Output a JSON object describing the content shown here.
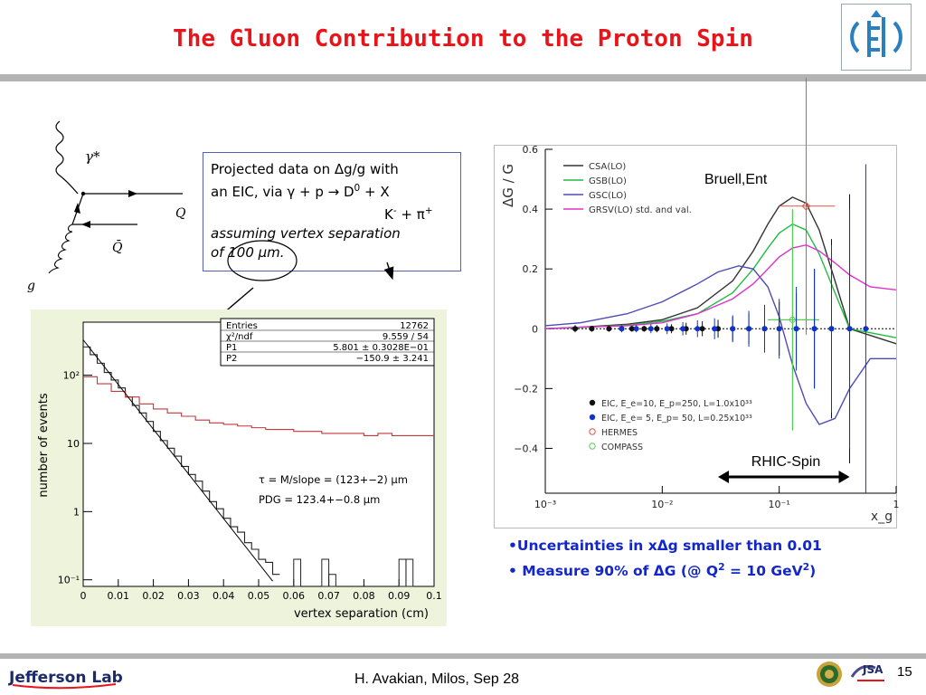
{
  "slide": {
    "title": "The Gluon Contribution to the Proton Spin",
    "page_number": "15",
    "author_line": "H. Avakian, Milos,  Sep 28",
    "footer_logo_text": "Jefferson Lab",
    "jsa_text": "JSA"
  },
  "diagram": {
    "gamma_label": "γ*",
    "q_label": "Q",
    "qbar_label": "Q̄",
    "g_label": "g"
  },
  "callout": {
    "line1": "Projected data on Δg/g with",
    "line2": "an EIC, via γ + p → D",
    "line2_sup": "0",
    "line2_tail": " + X",
    "line3": "K",
    "line3_sup1": "-",
    "line3_mid": " + π",
    "line3_sup2": "+",
    "line4": "assuming vertex separation",
    "line5": "of 100 μm."
  },
  "chart_data": [
    {
      "type": "line",
      "xlabel": "vertex separation (cm)",
      "ylabel": "number of events",
      "xlim": [
        0,
        0.1
      ],
      "ylim_log": [
        0.08,
        600
      ],
      "log_y": true,
      "x_ticks": [
        "0",
        "0.01",
        "0.02",
        "0.03",
        "0.04",
        "0.05",
        "0.06",
        "0.07",
        "0.08",
        "0.09",
        "0.1"
      ],
      "y_ticks": [
        "10⁻¹",
        "1",
        "10",
        "10²"
      ],
      "stats_box": [
        {
          "label": "Entries",
          "value": "12762"
        },
        {
          "label": "χ²/ndf",
          "value": "9.559    /    54"
        },
        {
          "label": "P1",
          "value": "5.801 ±  0.3028E−01"
        },
        {
          "label": "P2",
          "value": "−150.9 ±        3.241"
        }
      ],
      "annotations": [
        "τ = M/slope = (123+−2) μm",
        "PDG = 123.4+−0.8 μm"
      ],
      "fit_line": {
        "intercept_log": 5.801,
        "slope": -150.9
      },
      "series": [
        {
          "color": "#222222",
          "x": [
            0.001,
            0.003,
            0.005,
            0.007,
            0.009,
            0.011,
            0.013,
            0.015,
            0.017,
            0.019,
            0.021,
            0.023,
            0.025,
            0.027,
            0.029,
            0.031,
            0.033,
            0.035,
            0.037,
            0.039,
            0.041,
            0.043,
            0.045,
            0.047,
            0.049,
            0.051,
            0.053,
            0.055
          ],
          "y": [
            260,
            200,
            150,
            110,
            85,
            65,
            48,
            36,
            28,
            21,
            15,
            11,
            8.5,
            6.5,
            4.6,
            3.5,
            2.8,
            2.0,
            1.4,
            1.1,
            0.8,
            0.6,
            0.5,
            0.35,
            0.28,
            0.2,
            0.18,
            0.12
          ]
        },
        {
          "color": "#c0393b",
          "x": [
            0.002,
            0.006,
            0.01,
            0.014,
            0.018,
            0.022,
            0.026,
            0.03,
            0.034,
            0.038,
            0.042,
            0.046,
            0.05,
            0.054,
            0.058,
            0.062,
            0.066,
            0.07,
            0.074,
            0.078,
            0.082,
            0.086,
            0.09,
            0.094,
            0.098
          ],
          "y": [
            95,
            75,
            58,
            48,
            38,
            32,
            28,
            25,
            22,
            20,
            19,
            18,
            17,
            16,
            16,
            15,
            15,
            14,
            14,
            14,
            13,
            14,
            13,
            13,
            13
          ]
        }
      ]
    },
    {
      "type": "line",
      "xlabel": "x_g",
      "ylabel": "ΔG / G",
      "xlim_log": [
        0.001,
        1
      ],
      "ylim": [
        -0.55,
        0.6
      ],
      "x_ticks": [
        "10⁻³",
        "10⁻²",
        "10⁻¹",
        "1"
      ],
      "y_ticks": [
        "0.6",
        "0.4",
        "0.2",
        "0",
        "−0.2",
        "−0.4"
      ],
      "text_labels": [
        "Bruell,Ent",
        "RHIC-Spin"
      ],
      "legend_top": [
        "CSA(LO)",
        "GSB(LO)",
        "GSC(LO)",
        "GRSV(LO) std. and val."
      ],
      "legend_bottom": [
        "EIC, E_e=10, E_p=250, L=1.0x10³³",
        "EIC, E_e= 5, E_p= 50, L=0.25x10³³",
        "HERMES",
        "COMPASS"
      ],
      "series": [
        {
          "name": "CSA(LO)",
          "color": "#333333",
          "x": [
            0.001,
            0.002,
            0.005,
            0.01,
            0.02,
            0.04,
            0.06,
            0.08,
            0.1,
            0.13,
            0.17,
            0.22,
            0.3,
            0.4,
            1.0
          ],
          "y": [
            0.0,
            0.005,
            0.015,
            0.03,
            0.07,
            0.16,
            0.26,
            0.35,
            0.41,
            0.44,
            0.42,
            0.33,
            0.16,
            0.0,
            -0.05
          ]
        },
        {
          "name": "GSB(LO)",
          "color": "#22bb44",
          "x": [
            0.001,
            0.002,
            0.005,
            0.01,
            0.02,
            0.04,
            0.06,
            0.08,
            0.1,
            0.13,
            0.17,
            0.22,
            0.3,
            0.4,
            1.0
          ],
          "y": [
            0.0,
            0.004,
            0.012,
            0.025,
            0.05,
            0.12,
            0.2,
            0.27,
            0.32,
            0.35,
            0.33,
            0.25,
            0.12,
            0.0,
            -0.03
          ]
        },
        {
          "name": "GSC(LO)",
          "color": "#4c4cb8",
          "x": [
            0.001,
            0.002,
            0.005,
            0.01,
            0.02,
            0.03,
            0.045,
            0.06,
            0.08,
            0.1,
            0.13,
            0.17,
            0.22,
            0.3,
            0.4,
            0.6,
            1.0
          ],
          "y": [
            0.01,
            0.02,
            0.05,
            0.09,
            0.15,
            0.19,
            0.21,
            0.2,
            0.14,
            0.04,
            -0.12,
            -0.25,
            -0.32,
            -0.3,
            -0.2,
            -0.1,
            -0.1
          ]
        },
        {
          "name": "GRSV(LO) std. and val.",
          "color": "#dd33cc",
          "x": [
            0.001,
            0.002,
            0.005,
            0.01,
            0.02,
            0.04,
            0.06,
            0.08,
            0.1,
            0.13,
            0.17,
            0.22,
            0.3,
            0.4,
            0.6,
            1.0
          ],
          "y": [
            0.0,
            0.005,
            0.01,
            0.02,
            0.05,
            0.1,
            0.15,
            0.2,
            0.24,
            0.27,
            0.28,
            0.26,
            0.22,
            0.18,
            0.14,
            0.13
          ]
        }
      ],
      "points_eic_10x250": {
        "color": "#111111",
        "x": [
          0.0018,
          0.0025,
          0.0035,
          0.0045,
          0.0055,
          0.007,
          0.009,
          0.012,
          0.016,
          0.022,
          0.03,
          0.04,
          0.055,
          0.075,
          0.1,
          0.14,
          0.2,
          0.28,
          0.4
        ],
        "err": [
          0.012,
          0.01,
          0.01,
          0.01,
          0.01,
          0.01,
          0.012,
          0.015,
          0.02,
          0.025,
          0.03,
          0.04,
          0.05,
          0.07,
          0.09,
          0.12,
          0.2,
          0.3,
          0.45
        ]
      },
      "points_eic_5x50": {
        "color": "#1133cc",
        "x": [
          0.0045,
          0.006,
          0.008,
          0.011,
          0.015,
          0.02,
          0.028,
          0.04,
          0.055,
          0.075,
          0.1,
          0.14,
          0.2,
          0.28,
          0.4,
          0.55
        ],
        "err": [
          0.012,
          0.012,
          0.015,
          0.018,
          0.022,
          0.028,
          0.035,
          0.045,
          0.06,
          0.08,
          0.1,
          0.14,
          0.2,
          0.28,
          0.4,
          0.55
        ]
      },
      "hermes": {
        "color": "#dd5544",
        "x": 0.17,
        "y": 0.41,
        "err_y": 0.43,
        "x_range": [
          0.1,
          0.3
        ]
      },
      "compass": {
        "color": "#55cc55",
        "x": 0.13,
        "y": 0.03,
        "err_y": 0.37,
        "x_range": [
          0.08,
          0.22
        ]
      },
      "rhic_arrow_range": [
        0.03,
        0.4
      ]
    }
  ],
  "bullets": {
    "b1": "•Uncertainties in xΔg smaller than 0.01",
    "b2a": "• Measure 90% of ΔG (@ Q",
    "b2sup": "2",
    "b2b": " = 10 GeV",
    "b2sup2": "2",
    "b2c": ")"
  },
  "colors": {
    "title": "#e8141a",
    "bullets": "#1327c8",
    "rule": "#b3b3b3"
  }
}
